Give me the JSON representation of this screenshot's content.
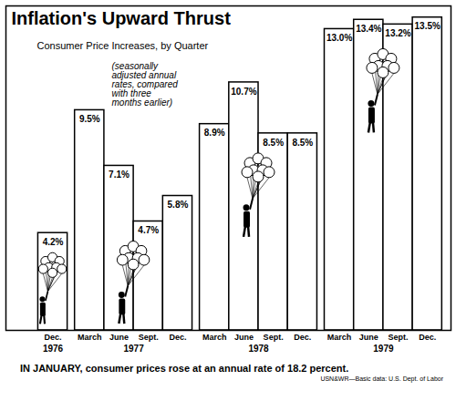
{
  "chart_data": {
    "type": "bar",
    "title": "Inflation's Upward Thrust",
    "subtitle": "Consumer Price Increases, by Quarter",
    "annotation": "(seasonally adjusted annual rates, compared with three months earlier)",
    "caption": "IN JANUARY, consumer prices rose at an annual rate of 18.2 percent.",
    "source": "USN&WR—Basic data: U.S. Dept. of Labor",
    "categories": [
      "Dec.",
      "March",
      "June",
      "Sept.",
      "Dec.",
      "March",
      "June",
      "Sept.",
      "Dec.",
      "March",
      "June",
      "Sept.",
      "Dec."
    ],
    "groups": [
      "1976",
      "1977",
      "1977",
      "1977",
      "1977",
      "1978",
      "1978",
      "1978",
      "1978",
      "1979",
      "1979",
      "1979",
      "1979"
    ],
    "values": [
      4.2,
      9.5,
      7.1,
      4.7,
      5.8,
      8.9,
      10.7,
      8.5,
      8.5,
      13.0,
      13.4,
      13.2,
      13.5
    ],
    "value_labels": [
      "4.2%",
      "9.5%",
      "7.1%",
      "4.7%",
      "5.8%",
      "8.9%",
      "10.7%",
      "8.5%",
      "8.5%",
      "13.0%",
      "13.4%",
      "13.2%",
      "13.5%"
    ],
    "data_labels": true,
    "color": "#ffffff",
    "ylim": [
      0,
      14
    ],
    "yticks": [],
    "tick_labels": "x",
    "grid": false
  }
}
